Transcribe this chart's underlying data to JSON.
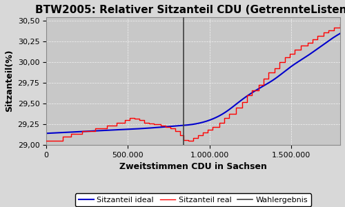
{
  "title": "BTW2005: Relativer Sitzanteil CDU (GetrennteListen)",
  "xlabel": "Zweitstimmen CDU in Sachsen",
  "ylabel": "Sitzanteil(%)",
  "xlim": [
    0,
    1800000
  ],
  "ylim": [
    29.0,
    30.55
  ],
  "yticks": [
    29.0,
    29.25,
    29.5,
    29.75,
    30.0,
    30.25,
    30.5
  ],
  "xticks": [
    0,
    500000,
    1000000,
    1500000
  ],
  "xtick_labels": [
    "0",
    "500.000",
    "1.000.000",
    "1.500.000"
  ],
  "wahlergebnis_x": 840000,
  "background_color": "#c8c8c8",
  "fig_background_color": "#d8d8d8",
  "line_real_color": "#ff0000",
  "line_ideal_color": "#0000cc",
  "line_wahlergebnis_color": "#404040",
  "legend_labels": [
    "Sitzanteil real",
    "Sitzanteil ideal",
    "Wahlergebnis"
  ],
  "title_fontsize": 11,
  "axis_label_fontsize": 9,
  "tick_fontsize": 8,
  "ideal_x": [
    0,
    200000,
    400000,
    600000,
    800000,
    900000,
    1000000,
    1100000,
    1200000,
    1300000,
    1400000,
    1500000,
    1600000,
    1700000,
    1800000
  ],
  "ideal_y": [
    29.14,
    29.16,
    29.18,
    29.2,
    29.23,
    29.25,
    29.3,
    29.4,
    29.55,
    29.68,
    29.8,
    29.95,
    30.08,
    30.22,
    30.35
  ],
  "step_x": [
    0,
    100000,
    150000,
    220000,
    300000,
    370000,
    430000,
    480000,
    510000,
    540000,
    570000,
    600000,
    630000,
    660000,
    700000,
    730000,
    760000,
    790000,
    820000,
    840000,
    870000,
    900000,
    930000,
    960000,
    990000,
    1020000,
    1060000,
    1090000,
    1120000,
    1160000,
    1200000,
    1230000,
    1260000,
    1300000,
    1330000,
    1360000,
    1400000,
    1430000,
    1460000,
    1490000,
    1520000,
    1560000,
    1600000,
    1630000,
    1660000,
    1700000,
    1730000,
    1760000,
    1800000
  ],
  "step_y": [
    29.05,
    29.1,
    29.13,
    29.17,
    29.2,
    29.23,
    29.27,
    29.3,
    29.33,
    29.32,
    29.3,
    29.27,
    29.26,
    29.25,
    29.23,
    29.22,
    29.2,
    29.17,
    29.12,
    29.06,
    29.05,
    29.08,
    29.12,
    29.15,
    29.18,
    29.22,
    29.27,
    29.33,
    29.38,
    29.45,
    29.52,
    29.6,
    29.66,
    29.73,
    29.8,
    29.88,
    29.93,
    30.0,
    30.06,
    30.1,
    30.15,
    30.2,
    30.24,
    30.28,
    30.32,
    30.36,
    30.39,
    30.42,
    30.46
  ]
}
